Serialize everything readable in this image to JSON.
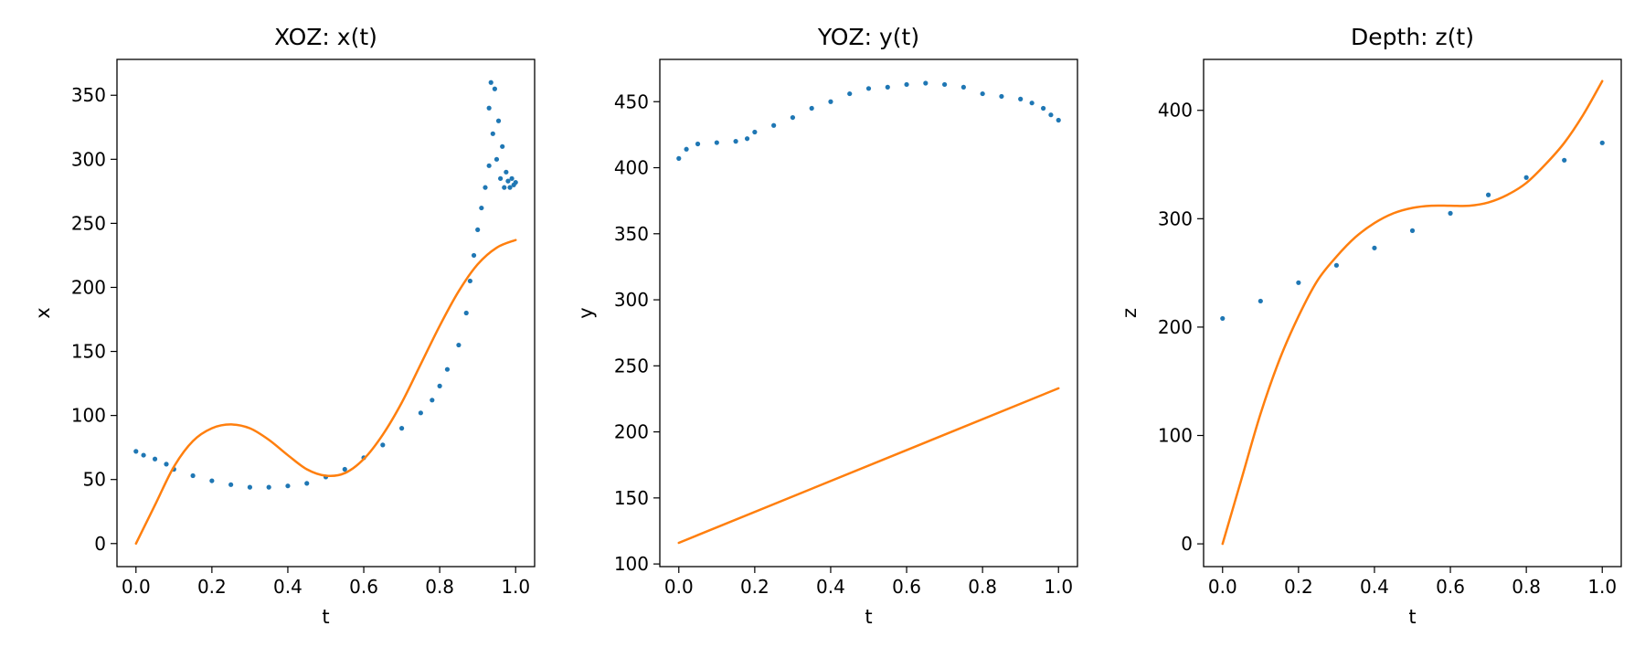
{
  "chart_data": [
    {
      "type": "scatter",
      "title": "XOZ: x(t)",
      "xlabel": "t",
      "ylabel": "x",
      "xlim": [
        -0.05,
        1.05
      ],
      "ylim": [
        -18,
        378
      ],
      "xticks": [
        0.0,
        0.2,
        0.4,
        0.6,
        0.8,
        1.0
      ],
      "xtick_labels": [
        "0.0",
        "0.2",
        "0.4",
        "0.6",
        "0.8",
        "1.0"
      ],
      "yticks": [
        0,
        50,
        100,
        150,
        200,
        250,
        300,
        350
      ],
      "ytick_labels": [
        "0",
        "50",
        "100",
        "150",
        "200",
        "250",
        "300",
        "350"
      ],
      "grid": false,
      "series": [
        {
          "kind": "points",
          "color": "#1f77b4",
          "points": [
            [
              0.0,
              72
            ],
            [
              0.02,
              69
            ],
            [
              0.05,
              66
            ],
            [
              0.08,
              62
            ],
            [
              0.1,
              58
            ],
            [
              0.15,
              53
            ],
            [
              0.2,
              49
            ],
            [
              0.25,
              46
            ],
            [
              0.3,
              44
            ],
            [
              0.35,
              44
            ],
            [
              0.4,
              45
            ],
            [
              0.45,
              47
            ],
            [
              0.5,
              52
            ],
            [
              0.55,
              58
            ],
            [
              0.6,
              67
            ],
            [
              0.65,
              77
            ],
            [
              0.7,
              90
            ],
            [
              0.75,
              102
            ],
            [
              0.78,
              112
            ],
            [
              0.8,
              123
            ],
            [
              0.82,
              136
            ],
            [
              0.85,
              155
            ],
            [
              0.87,
              180
            ],
            [
              0.88,
              205
            ],
            [
              0.89,
              225
            ],
            [
              0.9,
              245
            ],
            [
              0.91,
              262
            ],
            [
              0.92,
              278
            ],
            [
              0.93,
              295
            ],
            [
              0.93,
              340
            ],
            [
              0.935,
              360
            ],
            [
              0.94,
              320
            ],
            [
              0.945,
              355
            ],
            [
              0.95,
              300
            ],
            [
              0.955,
              330
            ],
            [
              0.96,
              285
            ],
            [
              0.965,
              310
            ],
            [
              0.97,
              278
            ],
            [
              0.975,
              290
            ],
            [
              0.98,
              283
            ],
            [
              0.985,
              278
            ],
            [
              0.99,
              285
            ],
            [
              0.995,
              280
            ],
            [
              1.0,
              282
            ]
          ]
        },
        {
          "kind": "line",
          "color": "#ff7f0e",
          "points": [
            [
              0.0,
              0
            ],
            [
              0.05,
              30
            ],
            [
              0.1,
              60
            ],
            [
              0.15,
              80
            ],
            [
              0.2,
              90
            ],
            [
              0.25,
              93
            ],
            [
              0.3,
              90
            ],
            [
              0.35,
              81
            ],
            [
              0.4,
              69
            ],
            [
              0.45,
              58
            ],
            [
              0.5,
              53
            ],
            [
              0.55,
              55
            ],
            [
              0.6,
              66
            ],
            [
              0.65,
              85
            ],
            [
              0.7,
              110
            ],
            [
              0.75,
              140
            ],
            [
              0.8,
              170
            ],
            [
              0.85,
              197
            ],
            [
              0.9,
              218
            ],
            [
              0.95,
              231
            ],
            [
              1.0,
              237
            ]
          ]
        }
      ]
    },
    {
      "type": "scatter",
      "title": "YOZ: y(t)",
      "xlabel": "t",
      "ylabel": "y",
      "xlim": [
        -0.05,
        1.05
      ],
      "ylim": [
        98,
        482
      ],
      "xticks": [
        0.0,
        0.2,
        0.4,
        0.6,
        0.8,
        1.0
      ],
      "xtick_labels": [
        "0.0",
        "0.2",
        "0.4",
        "0.6",
        "0.8",
        "1.0"
      ],
      "yticks": [
        100,
        150,
        200,
        250,
        300,
        350,
        400,
        450
      ],
      "ytick_labels": [
        "100",
        "150",
        "200",
        "250",
        "300",
        "350",
        "400",
        "450"
      ],
      "grid": false,
      "series": [
        {
          "kind": "points",
          "color": "#1f77b4",
          "points": [
            [
              0.0,
              407
            ],
            [
              0.02,
              414
            ],
            [
              0.05,
              418
            ],
            [
              0.1,
              419
            ],
            [
              0.15,
              420
            ],
            [
              0.18,
              422
            ],
            [
              0.2,
              427
            ],
            [
              0.25,
              432
            ],
            [
              0.3,
              438
            ],
            [
              0.35,
              445
            ],
            [
              0.4,
              450
            ],
            [
              0.45,
              456
            ],
            [
              0.5,
              460
            ],
            [
              0.55,
              461
            ],
            [
              0.6,
              463
            ],
            [
              0.65,
              464
            ],
            [
              0.7,
              463
            ],
            [
              0.75,
              461
            ],
            [
              0.8,
              456
            ],
            [
              0.85,
              454
            ],
            [
              0.9,
              452
            ],
            [
              0.93,
              449
            ],
            [
              0.96,
              445
            ],
            [
              0.98,
              440
            ],
            [
              1.0,
              436
            ]
          ]
        },
        {
          "kind": "line",
          "color": "#ff7f0e",
          "points": [
            [
              0.0,
              116
            ],
            [
              1.0,
              233
            ]
          ]
        }
      ]
    },
    {
      "type": "scatter",
      "title": "Depth: z(t)",
      "xlabel": "t",
      "ylabel": "z",
      "xlim": [
        -0.05,
        1.05
      ],
      "ylim": [
        -21,
        447
      ],
      "xticks": [
        0.0,
        0.2,
        0.4,
        0.6,
        0.8,
        1.0
      ],
      "xtick_labels": [
        "0.0",
        "0.2",
        "0.4",
        "0.6",
        "0.8",
        "1.0"
      ],
      "yticks": [
        0,
        100,
        200,
        300,
        400
      ],
      "ytick_labels": [
        "0",
        "100",
        "200",
        "300",
        "400"
      ],
      "grid": false,
      "series": [
        {
          "kind": "points",
          "color": "#1f77b4",
          "points": [
            [
              0.0,
              208
            ],
            [
              0.1,
              224
            ],
            [
              0.2,
              241
            ],
            [
              0.3,
              257
            ],
            [
              0.4,
              273
            ],
            [
              0.5,
              289
            ],
            [
              0.6,
              305
            ],
            [
              0.7,
              322
            ],
            [
              0.8,
              338
            ],
            [
              0.9,
              354
            ],
            [
              1.0,
              370
            ]
          ]
        },
        {
          "kind": "line",
          "color": "#ff7f0e",
          "points": [
            [
              0.0,
              0
            ],
            [
              0.05,
              60
            ],
            [
              0.1,
              120
            ],
            [
              0.15,
              170
            ],
            [
              0.2,
              210
            ],
            [
              0.25,
              243
            ],
            [
              0.3,
              265
            ],
            [
              0.35,
              283
            ],
            [
              0.4,
              296
            ],
            [
              0.45,
              305
            ],
            [
              0.5,
              310
            ],
            [
              0.55,
              312
            ],
            [
              0.6,
              312
            ],
            [
              0.65,
              312
            ],
            [
              0.7,
              315
            ],
            [
              0.75,
              322
            ],
            [
              0.8,
              333
            ],
            [
              0.85,
              350
            ],
            [
              0.9,
              370
            ],
            [
              0.95,
              396
            ],
            [
              1.0,
              427
            ]
          ]
        }
      ]
    }
  ]
}
